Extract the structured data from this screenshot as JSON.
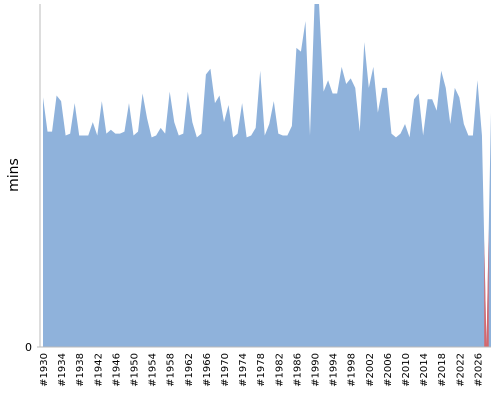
{
  "chart_data": {
    "type": "area",
    "ylabel": "mins",
    "categories": [
      "#1930",
      null,
      null,
      null,
      "#1934",
      null,
      null,
      null,
      "#1938",
      null,
      null,
      null,
      "#1942",
      null,
      null,
      null,
      "#1946",
      null,
      null,
      null,
      "#1950",
      null,
      null,
      null,
      "#1954",
      null,
      null,
      null,
      "#1958",
      null,
      null,
      null,
      "#1962",
      null,
      null,
      null,
      "#1966",
      null,
      null,
      null,
      "#1970",
      null,
      null,
      null,
      "#1974",
      null,
      null,
      null,
      "#1978",
      null,
      null,
      null,
      "#1982",
      null,
      null,
      null,
      "#1986",
      null,
      null,
      null,
      "#1990",
      null,
      null,
      null,
      "#1994",
      null,
      null,
      null,
      "#1998",
      null,
      null,
      null,
      "#2002",
      null,
      null,
      null,
      "#2006",
      null,
      null,
      null,
      "#2010",
      null,
      null,
      null,
      "#2014",
      null,
      null,
      null,
      "#2018",
      null,
      null,
      null,
      "#2022",
      null,
      null,
      null,
      "#2026",
      null,
      null,
      null
    ],
    "values": [
      131,
      113,
      113,
      132,
      129,
      111,
      112,
      128,
      111,
      111,
      111,
      118,
      111,
      129,
      112,
      114,
      112,
      112,
      113,
      128,
      111,
      113,
      133,
      120,
      110,
      111,
      115,
      112,
      134,
      118,
      111,
      112,
      134,
      118,
      110,
      112,
      143,
      146,
      128,
      132,
      118,
      127,
      110,
      112,
      128,
      110,
      111,
      115,
      145,
      111,
      117,
      129,
      112,
      111,
      111,
      116,
      157,
      155,
      171,
      111,
      180,
      180,
      134,
      140,
      133,
      133,
      147,
      138,
      141,
      136,
      113,
      160,
      136,
      147,
      123,
      136,
      136,
      112,
      110,
      112,
      117,
      110,
      130,
      133,
      111,
      130,
      130,
      124,
      145,
      136,
      117,
      136,
      131,
      117,
      111,
      111,
      140,
      111,
      1,
      123
    ],
    "color": "#8fb2db",
    "highlight_index": 98,
    "highlight_color": "#e05a5a",
    "ylim": [
      0,
      180
    ],
    "yticks": [
      0
    ]
  }
}
